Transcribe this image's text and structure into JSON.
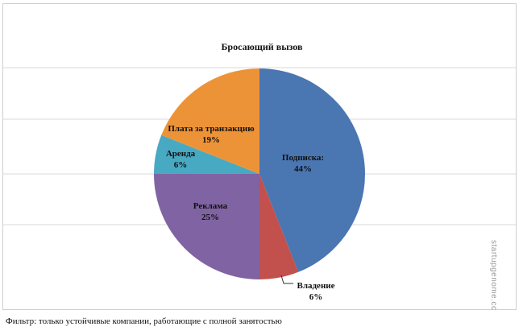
{
  "chart_data": {
    "type": "pie",
    "title": "Бросающий вызов",
    "slices": [
      {
        "label": "Подписка:",
        "value": 44,
        "display": "44%",
        "color": "#4a76b1"
      },
      {
        "label": "Владение",
        "value": 6,
        "display": "6%",
        "color": "#c2504d"
      },
      {
        "label": "Реклама",
        "value": 25,
        "display": "25%",
        "color": "#7f63a2"
      },
      {
        "label": "Аренда",
        "value": 6,
        "display": "6%",
        "color": "#48a9c3"
      },
      {
        "label": "Плата за транзакцию",
        "value": 19,
        "display": "19%",
        "color": "#ed9337"
      }
    ],
    "legend": "none",
    "grid": true
  },
  "footnote": "Фильтр: только устойчивые компании, работающие с полной занятостью",
  "watermark": "startupgenome.cc"
}
